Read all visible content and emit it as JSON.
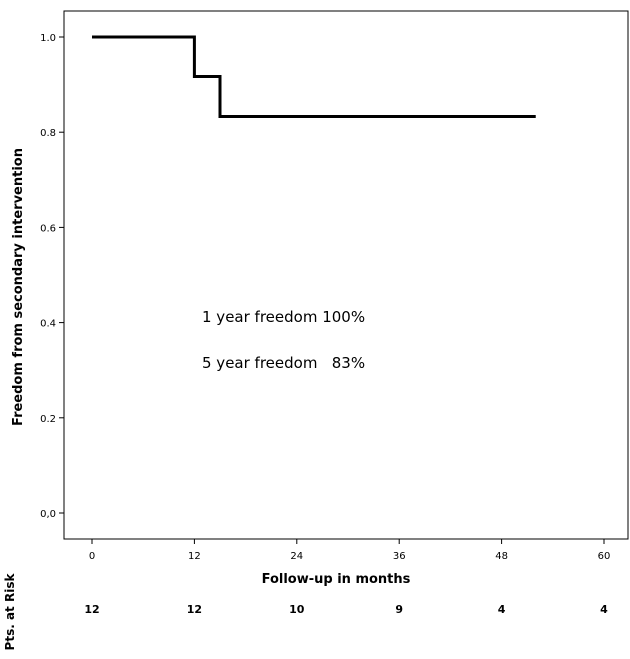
{
  "chart_data": {
    "type": "line",
    "step": true,
    "xlabel": "Follow-up in months",
    "ylabel": "Freedom from secondary intervention",
    "xlim": [
      0,
      60
    ],
    "ylim": [
      0,
      1
    ],
    "xticks": [
      "0",
      "12",
      "24",
      "36",
      "48",
      "60"
    ],
    "yticks": [
      "0,0",
      "0.2",
      "0.4",
      "0.6",
      "0.8",
      "1.0"
    ],
    "grid": false,
    "series": [
      {
        "x": [
          0,
          12,
          12,
          15,
          15,
          52
        ],
        "y": [
          1.0,
          1.0,
          0.917,
          0.917,
          0.833,
          0.833
        ]
      }
    ],
    "annotations": [
      "1 year freedom 100%",
      "5 year freedom   83%"
    ],
    "risk_table": {
      "label": "Pts. at Risk",
      "values": [
        "12",
        "12",
        "10",
        "9",
        "4",
        "4"
      ]
    }
  }
}
